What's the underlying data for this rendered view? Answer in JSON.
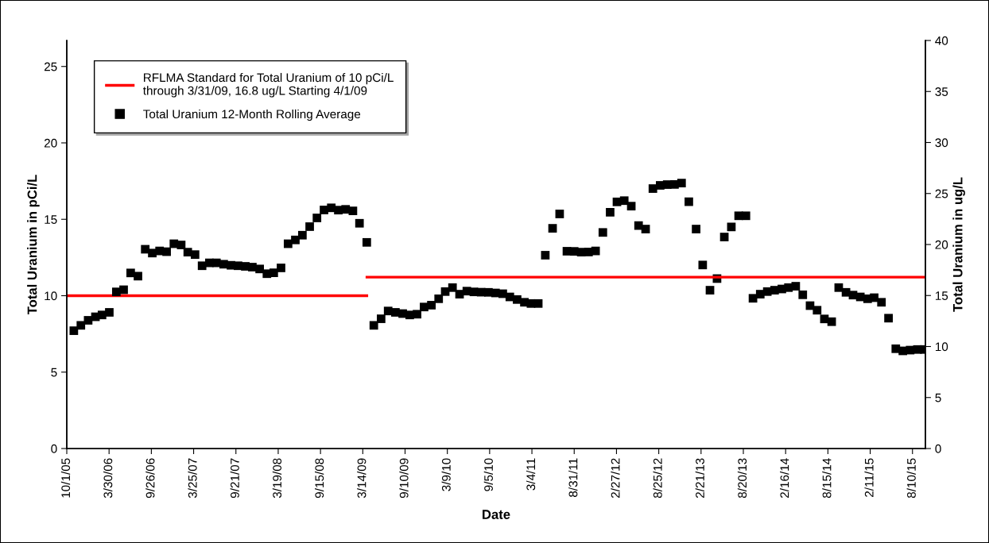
{
  "chart_data": {
    "type": "scatter",
    "xlabel": "Date",
    "ylabel": "Total Uranium in pCi/L",
    "y2label": "Total Uranium in ug/L",
    "xlim": [
      "2005-10-01",
      "2015-10-04"
    ],
    "xticks": [
      {
        "value": "2005-10-01",
        "label": "10/1/05"
      },
      {
        "value": "2006-03-30",
        "label": "3/30/06"
      },
      {
        "value": "2006-09-26",
        "label": "9/26/06"
      },
      {
        "value": "2007-03-25",
        "label": "3/25/07"
      },
      {
        "value": "2007-09-21",
        "label": "9/21/07"
      },
      {
        "value": "2008-03-19",
        "label": "3/19/08"
      },
      {
        "value": "2008-09-15",
        "label": "9/15/08"
      },
      {
        "value": "2009-03-14",
        "label": "3/14/09"
      },
      {
        "value": "2009-09-10",
        "label": "9/10/09"
      },
      {
        "value": "2010-03-09",
        "label": "3/9/10"
      },
      {
        "value": "2010-09-05",
        "label": "9/5/10"
      },
      {
        "value": "2011-03-04",
        "label": "3/4/11"
      },
      {
        "value": "2011-08-31",
        "label": "8/31/11"
      },
      {
        "value": "2012-02-27",
        "label": "2/27/12"
      },
      {
        "value": "2012-08-25",
        "label": "8/25/12"
      },
      {
        "value": "2013-02-21",
        "label": "2/21/13"
      },
      {
        "value": "2013-08-20",
        "label": "8/20/13"
      },
      {
        "value": "2014-02-16",
        "label": "2/16/14"
      },
      {
        "value": "2014-08-15",
        "label": "8/15/14"
      },
      {
        "value": "2015-02-11",
        "label": "2/11/15"
      },
      {
        "value": "2015-08-10",
        "label": "8/10/15"
      }
    ],
    "ylim": [
      0,
      26.7
    ],
    "yticks": [
      0,
      5,
      10,
      15,
      20,
      25
    ],
    "y2lim": [
      0,
      40
    ],
    "y2ticks": [
      0,
      5,
      10,
      15,
      20,
      25,
      30,
      35,
      40
    ],
    "grid": false,
    "legend": "top left",
    "series": [
      {
        "name": "RFLMA Standard for Total Uranium of 10 pCi/L\nthrough 3/31/09, 16.8 ug/L Starting 4/1/09",
        "type": "line",
        "color": "#ff0000",
        "line_style": "solid",
        "marker": "none",
        "x": [
          "2005-10-01",
          "2009-03-31"
        ],
        "values": [
          10,
          10
        ]
      },
      {
        "type": "line",
        "axis": "y2",
        "color": "#ff0000",
        "line_style": "solid",
        "marker": "none",
        "x": [
          "2009-04-01",
          "2015-10-04"
        ],
        "values": [
          16.8,
          16.8
        ]
      },
      {
        "name": "Total Uranium 12-Month Rolling Average",
        "color": "#000000",
        "marker": "square",
        "x": [
          "2005-10-31",
          "2005-11-30",
          "2005-12-31",
          "2006-01-31",
          "2006-02-28",
          "2006-03-31",
          "2006-04-30",
          "2006-05-31",
          "2006-06-30",
          "2006-07-31",
          "2006-08-31",
          "2006-09-30",
          "2006-10-31",
          "2006-11-30",
          "2006-12-31",
          "2007-01-31",
          "2007-02-28",
          "2007-03-31",
          "2007-04-30",
          "2007-05-31",
          "2007-06-30",
          "2007-07-31",
          "2007-08-31",
          "2007-09-30",
          "2007-10-31",
          "2007-11-30",
          "2007-12-31",
          "2008-01-31",
          "2008-02-29",
          "2008-03-31",
          "2008-04-30",
          "2008-05-31",
          "2008-06-30",
          "2008-07-31",
          "2008-08-31",
          "2008-09-30",
          "2008-10-31",
          "2008-11-30",
          "2008-12-31",
          "2009-01-31",
          "2009-02-28",
          "2009-03-31",
          "2009-04-30",
          "2009-05-31",
          "2009-06-30",
          "2009-07-31",
          "2009-08-31",
          "2009-09-30",
          "2009-10-31",
          "2009-11-30",
          "2009-12-31",
          "2010-01-31",
          "2010-02-28",
          "2010-03-31",
          "2010-04-30",
          "2010-05-31",
          "2010-06-30",
          "2010-07-31",
          "2010-08-31",
          "2010-09-30",
          "2010-10-31",
          "2010-11-30",
          "2010-12-31",
          "2011-01-31",
          "2011-02-28",
          "2011-03-31",
          "2011-04-30",
          "2011-05-31",
          "2011-06-30",
          "2011-07-31",
          "2011-08-31",
          "2011-09-30",
          "2011-10-31",
          "2011-11-30",
          "2011-12-31",
          "2012-01-31",
          "2012-02-29",
          "2012-03-31",
          "2012-04-30",
          "2012-05-31",
          "2012-06-30",
          "2012-07-31",
          "2012-08-31",
          "2012-09-30",
          "2012-10-31",
          "2012-11-30",
          "2012-12-31",
          "2013-01-31",
          "2013-02-28",
          "2013-03-31",
          "2013-04-30",
          "2013-05-31",
          "2013-06-30",
          "2013-07-31",
          "2013-08-31",
          "2013-09-30",
          "2013-10-31",
          "2013-11-30",
          "2013-12-31",
          "2014-01-31",
          "2014-02-28",
          "2014-03-31",
          "2014-04-30",
          "2014-05-31",
          "2014-06-30",
          "2014-07-31",
          "2014-08-31",
          "2014-09-30",
          "2014-10-31",
          "2014-11-30",
          "2014-12-31",
          "2015-01-31",
          "2015-02-28",
          "2015-03-31",
          "2015-04-30",
          "2015-05-31",
          "2015-06-30",
          "2015-07-31",
          "2015-08-31",
          "2015-09-30"
        ],
        "values": [
          7.71,
          8.06,
          8.39,
          8.62,
          8.74,
          8.91,
          10.25,
          10.39,
          11.49,
          11.28,
          13.04,
          12.79,
          12.93,
          12.88,
          13.4,
          13.32,
          12.85,
          12.69,
          11.96,
          12.15,
          12.15,
          12.06,
          11.99,
          11.96,
          11.92,
          11.87,
          11.75,
          11.44,
          11.5,
          11.82,
          13.4,
          13.65,
          13.96,
          14.52,
          15.09,
          15.61,
          15.75,
          15.6,
          15.65,
          15.55,
          14.74,
          13.49,
          8.06,
          8.49,
          9.0,
          8.91,
          8.83,
          8.74,
          8.79,
          9.26,
          9.38,
          9.8,
          10.27,
          10.53,
          10.1,
          10.3,
          10.25,
          10.23,
          10.22,
          10.18,
          10.13,
          9.92,
          9.75,
          9.57,
          9.49,
          9.49,
          12.65,
          14.41,
          15.35,
          12.91,
          12.9,
          12.85,
          12.86,
          12.93,
          14.14,
          15.46,
          16.14,
          16.22,
          15.86,
          14.59,
          14.36,
          17.01,
          17.22,
          17.27,
          17.28,
          17.37,
          16.15,
          14.36,
          12.01,
          10.36,
          11.12,
          13.84,
          14.5,
          15.23,
          15.23,
          9.83,
          10.1,
          10.27,
          10.36,
          10.44,
          10.53,
          10.62,
          10.06,
          9.35,
          9.05,
          8.48,
          8.3,
          10.53,
          10.22,
          10.04,
          9.92,
          9.8,
          9.87,
          9.57,
          8.53,
          6.53,
          6.39,
          6.44,
          6.48,
          6.48
        ]
      }
    ]
  }
}
